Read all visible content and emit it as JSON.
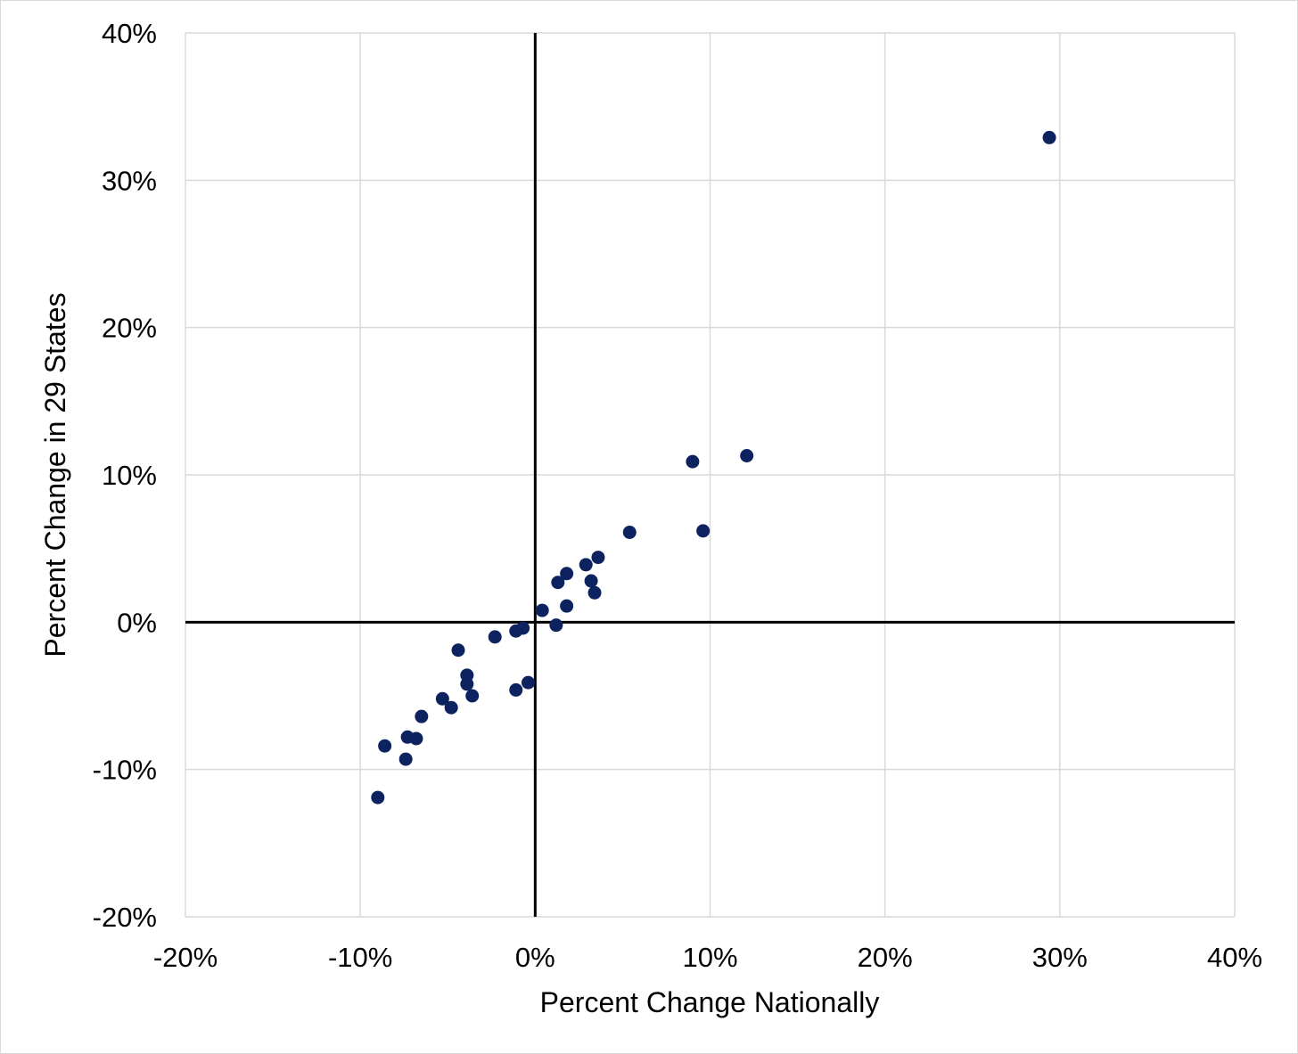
{
  "chart_data": {
    "type": "scatter",
    "title": "",
    "xlabel": "Percent Change Nationally",
    "ylabel": "Percent Change in 29 States",
    "xlim": [
      -20,
      40
    ],
    "ylim": [
      -20,
      40
    ],
    "x_ticks": [
      -20,
      -10,
      0,
      10,
      20,
      30,
      40
    ],
    "y_ticks": [
      -20,
      -10,
      0,
      10,
      20,
      30,
      40
    ],
    "x_tick_labels": [
      "-20%",
      "-10%",
      "0%",
      "10%",
      "20%",
      "30%",
      "40%"
    ],
    "y_tick_labels": [
      "-20%",
      "-10%",
      "0%",
      "10%",
      "20%",
      "30%",
      "40%"
    ],
    "grid": true,
    "legend": "none",
    "marker_color": "#0d2360",
    "points": [
      {
        "x": 29.4,
        "y": 32.9
      },
      {
        "x": 12.1,
        "y": 11.3
      },
      {
        "x": 9.0,
        "y": 10.9
      },
      {
        "x": 9.6,
        "y": 6.2
      },
      {
        "x": 5.4,
        "y": 6.1
      },
      {
        "x": 3.6,
        "y": 4.4
      },
      {
        "x": 2.9,
        "y": 3.9
      },
      {
        "x": 1.8,
        "y": 3.3
      },
      {
        "x": 1.3,
        "y": 2.7
      },
      {
        "x": 3.2,
        "y": 2.8
      },
      {
        "x": 3.4,
        "y": 2.0
      },
      {
        "x": 1.8,
        "y": 1.1
      },
      {
        "x": 0.4,
        "y": 0.8
      },
      {
        "x": 1.2,
        "y": -0.2
      },
      {
        "x": -0.7,
        "y": -0.4
      },
      {
        "x": -1.1,
        "y": -0.6
      },
      {
        "x": -2.3,
        "y": -1.0
      },
      {
        "x": -4.4,
        "y": -1.9
      },
      {
        "x": -3.9,
        "y": -3.6
      },
      {
        "x": -3.9,
        "y": -4.2
      },
      {
        "x": -3.6,
        "y": -5.0
      },
      {
        "x": -0.4,
        "y": -4.1
      },
      {
        "x": -1.1,
        "y": -4.6
      },
      {
        "x": -5.3,
        "y": -5.2
      },
      {
        "x": -4.8,
        "y": -5.8
      },
      {
        "x": -6.5,
        "y": -6.4
      },
      {
        "x": -7.3,
        "y": -7.8
      },
      {
        "x": -6.8,
        "y": -7.9
      },
      {
        "x": -8.6,
        "y": -8.4
      },
      {
        "x": -7.4,
        "y": -9.3
      },
      {
        "x": -9.0,
        "y": -11.9
      }
    ]
  }
}
